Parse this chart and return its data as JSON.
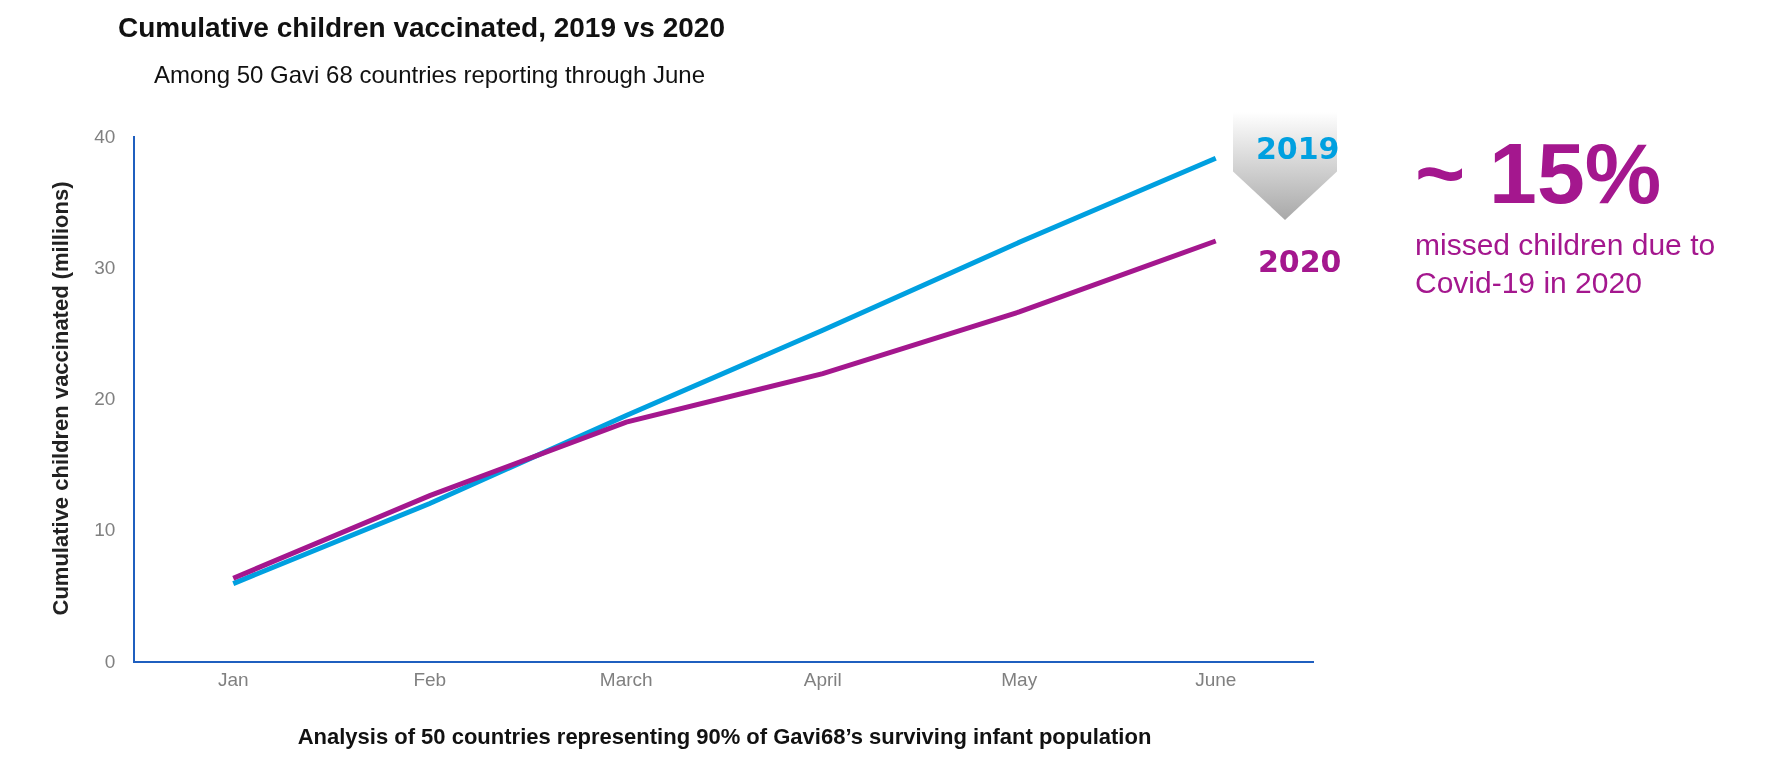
{
  "chart_data": {
    "type": "line",
    "title": "Cumulative children vaccinated, 2019 vs 2020",
    "subtitle": "Among 50 Gavi 68 countries reporting through June",
    "xlabel": "Analysis of 50 countries representing 90% of Gavi68’s surviving infant population",
    "ylabel": "Cumulative children vaccinated (millions)",
    "categories": [
      "Jan",
      "Feb",
      "March",
      "April",
      "May",
      "June"
    ],
    "series": [
      {
        "name": "2019",
        "color": "#00a0e0",
        "values": [
          5.9,
          12.0,
          18.7,
          25.2,
          31.9,
          38.3
        ]
      },
      {
        "name": "2020",
        "color": "#a4178e",
        "values": [
          6.3,
          12.6,
          18.2,
          21.9,
          26.6,
          32.0
        ]
      }
    ],
    "ylim": [
      0,
      40
    ],
    "yticks": [
      0,
      10,
      20,
      30,
      40
    ],
    "grid": false,
    "marker": "none",
    "line_style": "solid",
    "annotations": [
      "~ 15%",
      "missed children due to Covid-19 in 2020"
    ]
  }
}
